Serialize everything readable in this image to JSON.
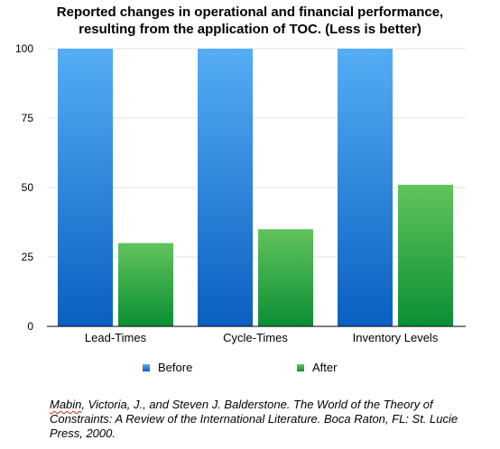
{
  "title_lines": [
    "Reported changes in operational and financial performance,",
    "resulting from the application of TOC. (Less is better)"
  ],
  "chart_data": {
    "type": "bar",
    "title": "Reported changes in operational and financial performance, resulting from the application of TOC. (Less is better)",
    "categories": [
      "Lead-Times",
      "Cycle-Times",
      "Inventory Levels"
    ],
    "series": [
      {
        "name": "Before",
        "values": [
          100,
          100,
          100
        ],
        "color": "#2f86e0"
      },
      {
        "name": "After",
        "values": [
          30,
          35,
          51
        ],
        "color": "#1fae4a"
      }
    ],
    "ylim": [
      0,
      100
    ],
    "yticks": [
      "0",
      "25",
      "50",
      "75",
      "100"
    ],
    "grid": true,
    "legend_position": "bottom"
  },
  "legend": {
    "before": "Before",
    "after": "After"
  },
  "citation": {
    "first_word": "Mabin",
    "rest": ", Victoria, J., and Steven J. Balderstone. The World of the Theory of Constraints: A Review of the International Literature. Boca Raton, FL: St. Lucie Press, 2000."
  }
}
